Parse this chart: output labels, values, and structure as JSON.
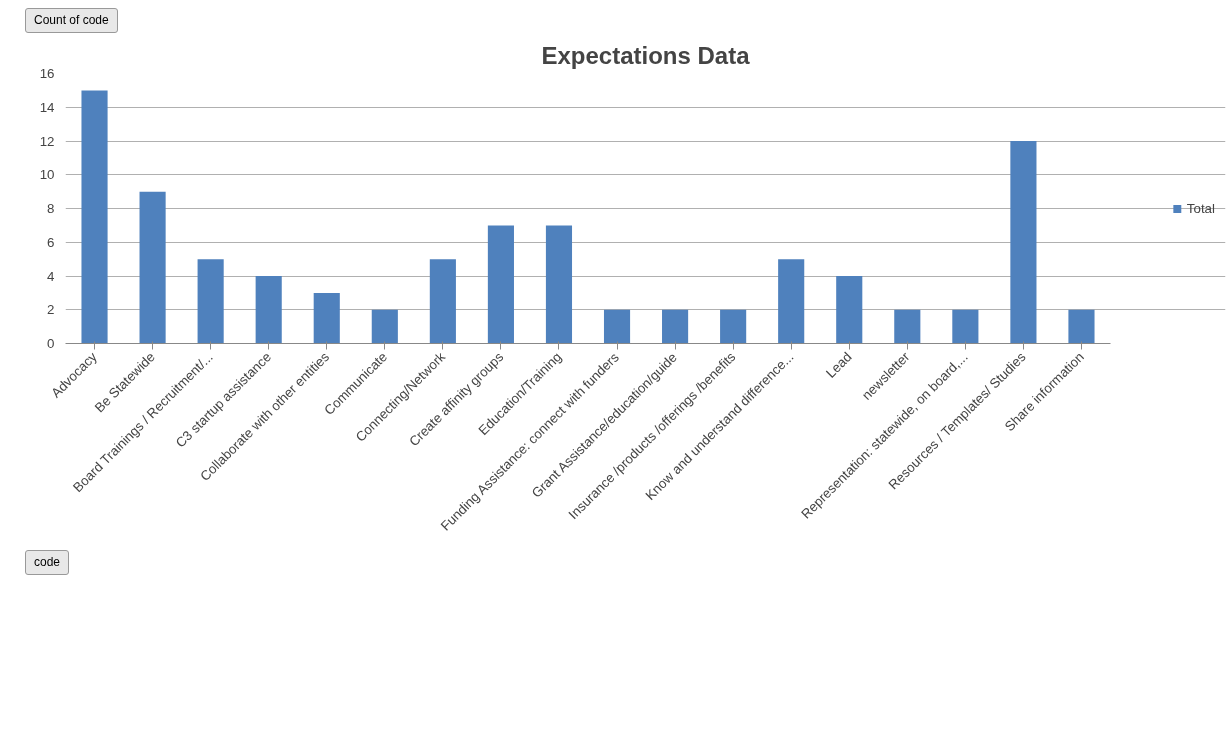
{
  "chart_data": {
    "type": "bar",
    "title": "Expectations Data",
    "categories": [
      "Advocacy",
      "Be Statewide",
      "Board Trainings / Recruitment/...",
      "C3 startup assistance",
      "Collaborate with other entities",
      "Communicate",
      "Connecting/Network",
      "Create affinity groups",
      "Education/Training",
      "Funding Assistance: connect with funders",
      "Grant Assistance/education/guide",
      "Insurance /products /offerings /benefits",
      "Know and understand difference...",
      "Lead",
      "newsletter",
      "Representation: statewide, on board,...",
      "Resources / Templates/ Studies",
      "Share information"
    ],
    "series": [
      {
        "name": "Total",
        "color": "#4f81bd",
        "values": [
          15,
          9,
          5,
          4,
          3,
          2,
          5,
          7,
          7,
          2,
          2,
          2,
          5,
          4,
          2,
          2,
          12,
          2
        ]
      }
    ],
    "ylim": [
      0,
      16
    ],
    "yticks": [
      0,
      2,
      4,
      6,
      8,
      10,
      12,
      14,
      16
    ],
    "grid": "y",
    "legend": "right",
    "annotations": [
      "Count of code",
      "code"
    ]
  }
}
